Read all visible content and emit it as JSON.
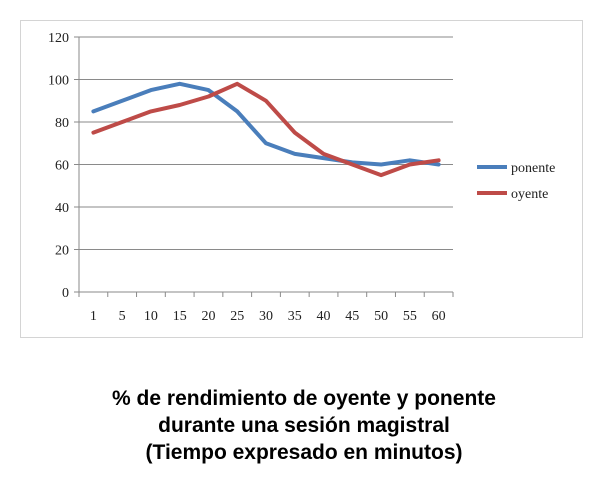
{
  "chart_data": {
    "type": "line",
    "categories": [
      "1",
      "5",
      "10",
      "15",
      "20",
      "25",
      "30",
      "35",
      "40",
      "45",
      "50",
      "55",
      "60"
    ],
    "ylim": [
      0,
      120
    ],
    "yticks": [
      "0",
      "20",
      "40",
      "60",
      "80",
      "100",
      "120"
    ],
    "grid": true,
    "legend_position": "right",
    "series": [
      {
        "name": "ponente",
        "color": "#4a7ebb",
        "values": [
          85,
          90,
          95,
          98,
          95,
          85,
          70,
          65,
          63,
          61,
          60,
          62,
          60
        ]
      },
      {
        "name": "oyente",
        "color": "#be4b48",
        "values": [
          75,
          80,
          85,
          88,
          92,
          98,
          90,
          75,
          65,
          60,
          55,
          60,
          62
        ]
      }
    ]
  },
  "caption": {
    "line1": "% de rendimiento de oyente y ponente",
    "line2": "durante una sesión magistral",
    "line3": "(Tiempo expresado en minutos)"
  }
}
